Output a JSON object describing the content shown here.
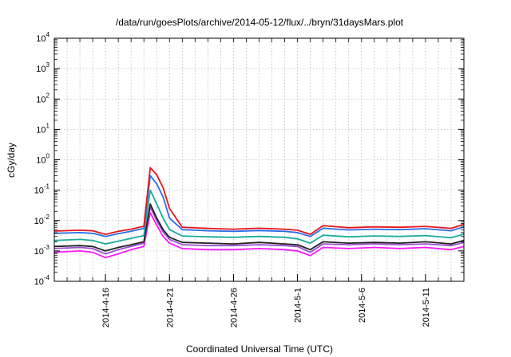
{
  "chart_data": {
    "type": "line",
    "title": "/data/run/goesPlots/archive/2014-05-12/flux/../bryn/31daysMars.plot",
    "xlabel": "Coordinated Universal Time (UTC)",
    "ylabel": "cGy/day",
    "yscale": "log",
    "ylim": [
      0.0001,
      10000
    ],
    "xlim": [
      "2014-04-12",
      "2014-05-14"
    ],
    "grid": true,
    "legend": "none",
    "y_ticks": [
      {
        "base": "10",
        "exp": "-4"
      },
      {
        "base": "10",
        "exp": "-3"
      },
      {
        "base": "10",
        "exp": "-2"
      },
      {
        "base": "10",
        "exp": "-1"
      },
      {
        "base": "10",
        "exp": "0"
      },
      {
        "base": "10",
        "exp": "1"
      },
      {
        "base": "10",
        "exp": "2"
      },
      {
        "base": "10",
        "exp": "3"
      },
      {
        "base": "10",
        "exp": "4"
      }
    ],
    "x_ticks": [
      "2014-4-16",
      "2014-4-21",
      "2014-4-26",
      "2014-5-1",
      "2014-5-6",
      "2014-5-11"
    ],
    "x": [
      "2014-04-12",
      "2014-04-14",
      "2014-04-15",
      "2014-04-16",
      "2014-04-17",
      "2014-04-18",
      "2014-04-19",
      "2014-04-19 12:00",
      "2014-04-20",
      "2014-04-20 12:00",
      "2014-04-21",
      "2014-04-22",
      "2014-04-24",
      "2014-04-26",
      "2014-04-28",
      "2014-04-30",
      "2014-05-01",
      "2014-05-02",
      "2014-05-03",
      "2014-05-05",
      "2014-05-07",
      "2014-05-09",
      "2014-05-11",
      "2014-05-13",
      "2014-05-14"
    ],
    "series": [
      {
        "color": "#e8141a",
        "values": [
          0.0045,
          0.0048,
          0.0046,
          0.0035,
          0.0044,
          0.0052,
          0.0065,
          0.55,
          0.32,
          0.12,
          0.025,
          0.006,
          0.0055,
          0.0052,
          0.0056,
          0.0052,
          0.0048,
          0.0035,
          0.0068,
          0.0058,
          0.0062,
          0.006,
          0.0064,
          0.0055,
          0.0075
        ]
      },
      {
        "color": "#2a6ee8",
        "values": [
          0.0038,
          0.004,
          0.0038,
          0.003,
          0.0037,
          0.0044,
          0.0055,
          0.3,
          0.16,
          0.06,
          0.012,
          0.005,
          0.0046,
          0.0044,
          0.0047,
          0.0044,
          0.004,
          0.003,
          0.0056,
          0.0049,
          0.0052,
          0.005,
          0.0054,
          0.0046,
          0.0062
        ]
      },
      {
        "color": "#1aab9b",
        "values": [
          0.0022,
          0.0024,
          0.0022,
          0.0017,
          0.0021,
          0.0026,
          0.0032,
          0.1,
          0.035,
          0.012,
          0.005,
          0.0031,
          0.0029,
          0.0028,
          0.003,
          0.0028,
          0.0025,
          0.0018,
          0.0033,
          0.0029,
          0.0031,
          0.003,
          0.0032,
          0.0027,
          0.0036
        ]
      },
      {
        "color": "#222222",
        "values": [
          0.0014,
          0.0015,
          0.0014,
          0.001,
          0.0013,
          0.0016,
          0.002,
          0.035,
          0.012,
          0.005,
          0.0028,
          0.0019,
          0.0018,
          0.0017,
          0.0019,
          0.0017,
          0.0016,
          0.0011,
          0.002,
          0.0018,
          0.0019,
          0.0018,
          0.002,
          0.0017,
          0.0022
        ]
      },
      {
        "color": "#9b4dd0",
        "values": [
          0.0012,
          0.0013,
          0.0012,
          0.0008,
          0.0011,
          0.0014,
          0.0018,
          0.028,
          0.01,
          0.0042,
          0.0024,
          0.0016,
          0.0015,
          0.0015,
          0.0016,
          0.0015,
          0.0014,
          0.0009,
          0.0017,
          0.0016,
          0.0017,
          0.0016,
          0.0017,
          0.0015,
          0.0019
        ]
      },
      {
        "color": "#ff14ff",
        "values": [
          0.0009,
          0.001,
          0.0009,
          0.0006,
          0.0008,
          0.0011,
          0.0014,
          0.018,
          0.007,
          0.003,
          0.0018,
          0.0012,
          0.0011,
          0.0011,
          0.0012,
          0.0011,
          0.001,
          0.0007,
          0.0013,
          0.0012,
          0.0013,
          0.0012,
          0.0013,
          0.0011,
          0.0014
        ]
      }
    ]
  }
}
